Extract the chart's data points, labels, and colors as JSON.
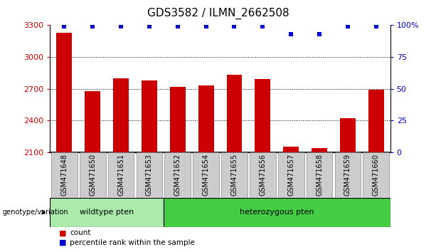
{
  "title": "GDS3582 / ILMN_2662508",
  "categories": [
    "GSM471648",
    "GSM471650",
    "GSM471651",
    "GSM471653",
    "GSM471652",
    "GSM471654",
    "GSM471655",
    "GSM471656",
    "GSM471657",
    "GSM471658",
    "GSM471659",
    "GSM471660"
  ],
  "bar_values": [
    3230,
    2680,
    2800,
    2780,
    2720,
    2730,
    2830,
    2790,
    2155,
    2140,
    2420,
    2690
  ],
  "percentile_values": [
    99,
    99,
    99,
    99,
    99,
    99,
    99,
    99,
    93,
    93,
    99,
    99
  ],
  "bar_color": "#cc0000",
  "dot_color": "#0000cc",
  "ylim_left": [
    2100,
    3300
  ],
  "ylim_right": [
    0,
    100
  ],
  "yticks_left": [
    2100,
    2400,
    2700,
    3000,
    3300
  ],
  "yticks_right": [
    0,
    25,
    50,
    75,
    100
  ],
  "yticklabels_right": [
    "0",
    "25",
    "50",
    "75",
    "100%"
  ],
  "grid_values": [
    3000,
    2700,
    2400
  ],
  "n_wildtype": 4,
  "n_heterozygous": 8,
  "wildtype_label": "wildtype pten",
  "heterozygous_label": "heterozygous pten",
  "wildtype_color": "#aaeaaa",
  "heterozygous_color": "#44cc44",
  "group_label": "genotype/variation",
  "legend_count_label": "count",
  "legend_percentile_label": "percentile rank within the sample",
  "title_fontsize": 11,
  "axis_tick_fontsize": 8,
  "left_tick_color": "#cc0000",
  "right_tick_color": "#0000cc",
  "bar_width": 0.55,
  "xtick_box_color": "#cccccc",
  "xtick_fontsize": 7
}
